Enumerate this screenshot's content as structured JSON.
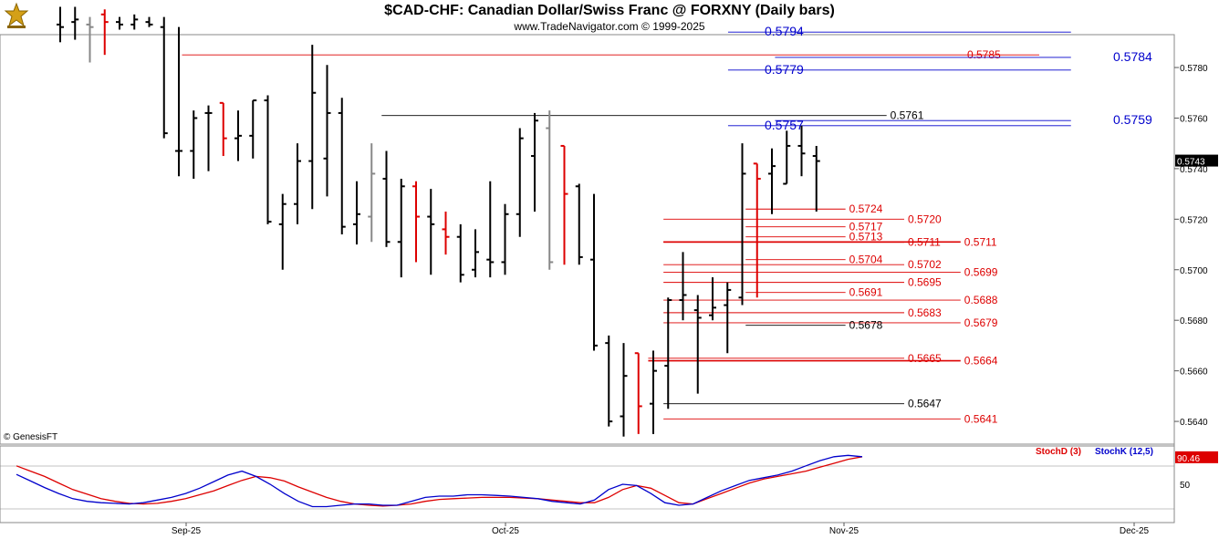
{
  "header": {
    "title": "$CAD-CHF:  Canadian Dollar/Swiss Franc @ FORXNY  (Daily bars)",
    "subtitle": "www.TradeNavigator.com © 1999-2025",
    "copyright": "© GenesisFT"
  },
  "colors": {
    "up_bar": "#000000",
    "down_bar": "#dd0000",
    "neutral_bar": "#888888",
    "level_blue": "#0000cc",
    "level_red": "#dd0000",
    "level_black": "#000000",
    "stoch_d": "#dd0000",
    "stoch_k": "#0000cc"
  },
  "chart_data": [
    {
      "type": "ohlc",
      "y_axis": {
        "ylim": [
          0.5631,
          0.5793
        ],
        "ticks": [
          "0.5640",
          "0.5660",
          "0.5680",
          "0.5700",
          "0.5720",
          "0.5740",
          "0.5760",
          "0.5780"
        ],
        "side": "right"
      },
      "x_axis": {
        "labels": [
          "Sep-25",
          "Oct-25",
          "Nov-25",
          "Dec-25"
        ],
        "label_positions_index": [
          0,
          22,
          32,
          43
        ]
      },
      "last_price": "0.5743",
      "bars": [
        {
          "o": 0.5797,
          "h": 0.5804,
          "l": 0.579,
          "c": 0.5796,
          "col": "black"
        },
        {
          "o": 0.5798,
          "h": 0.5804,
          "l": 0.5791,
          "c": 0.5799,
          "col": "black"
        },
        {
          "o": 0.5797,
          "h": 0.58,
          "l": 0.5782,
          "c": 0.5796,
          "col": "grey"
        },
        {
          "o": 0.5801,
          "h": 0.5803,
          "l": 0.5785,
          "c": 0.5798,
          "col": "red"
        },
        {
          "o": 0.5798,
          "h": 0.58,
          "l": 0.5795,
          "c": 0.5797,
          "col": "black"
        },
        {
          "o": 0.5797,
          "h": 0.5801,
          "l": 0.5795,
          "c": 0.5799,
          "col": "black"
        },
        {
          "o": 0.5798,
          "h": 0.58,
          "l": 0.5796,
          "c": 0.5797,
          "col": "black"
        },
        {
          "o": 0.5796,
          "h": 0.58,
          "l": 0.5752,
          "c": 0.5754,
          "col": "black"
        },
        {
          "o": 0.5747,
          "h": 0.5796,
          "l": 0.5737,
          "c": 0.5747,
          "col": "black"
        },
        {
          "o": 0.5747,
          "h": 0.5763,
          "l": 0.5736,
          "c": 0.576,
          "col": "black"
        },
        {
          "o": 0.5762,
          "h": 0.5765,
          "l": 0.5739,
          "c": 0.5762,
          "col": "black"
        },
        {
          "o": 0.5766,
          "h": 0.5766,
          "l": 0.5745,
          "c": 0.5752,
          "col": "red"
        },
        {
          "o": 0.5752,
          "h": 0.5763,
          "l": 0.5743,
          "c": 0.5753,
          "col": "black"
        },
        {
          "o": 0.5753,
          "h": 0.5767,
          "l": 0.5744,
          "c": 0.5767,
          "col": "black"
        },
        {
          "o": 0.5767,
          "h": 0.5769,
          "l": 0.5718,
          "c": 0.5719,
          "col": "black"
        },
        {
          "o": 0.5718,
          "h": 0.573,
          "l": 0.57,
          "c": 0.5726,
          "col": "black"
        },
        {
          "o": 0.5726,
          "h": 0.575,
          "l": 0.5718,
          "c": 0.5743,
          "col": "black"
        },
        {
          "o": 0.5743,
          "h": 0.5789,
          "l": 0.5724,
          "c": 0.577,
          "col": "black"
        },
        {
          "o": 0.5744,
          "h": 0.5781,
          "l": 0.5729,
          "c": 0.5762,
          "col": "black"
        },
        {
          "o": 0.5762,
          "h": 0.5768,
          "l": 0.5714,
          "c": 0.5717,
          "col": "black"
        },
        {
          "o": 0.5718,
          "h": 0.5735,
          "l": 0.571,
          "c": 0.5722,
          "col": "black"
        },
        {
          "o": 0.5721,
          "h": 0.575,
          "l": 0.5711,
          "c": 0.5738,
          "col": "grey"
        },
        {
          "o": 0.5736,
          "h": 0.5747,
          "l": 0.5709,
          "c": 0.5711,
          "col": "black"
        },
        {
          "o": 0.5711,
          "h": 0.5736,
          "l": 0.5697,
          "c": 0.5733,
          "col": "black"
        },
        {
          "o": 0.5733,
          "h": 0.5735,
          "l": 0.5703,
          "c": 0.5721,
          "col": "red"
        },
        {
          "o": 0.5721,
          "h": 0.5732,
          "l": 0.5698,
          "c": 0.5718,
          "col": "black"
        },
        {
          "o": 0.5716,
          "h": 0.5723,
          "l": 0.5706,
          "c": 0.5713,
          "col": "red"
        },
        {
          "o": 0.5713,
          "h": 0.5718,
          "l": 0.5695,
          "c": 0.5698,
          "col": "black"
        },
        {
          "o": 0.57,
          "h": 0.5716,
          "l": 0.5697,
          "c": 0.5707,
          "col": "black"
        },
        {
          "o": 0.5704,
          "h": 0.5735,
          "l": 0.5697,
          "c": 0.5703,
          "col": "black"
        },
        {
          "o": 0.5703,
          "h": 0.5726,
          "l": 0.5698,
          "c": 0.5722,
          "col": "black"
        },
        {
          "o": 0.5722,
          "h": 0.5756,
          "l": 0.5713,
          "c": 0.5752,
          "col": "black"
        },
        {
          "o": 0.5745,
          "h": 0.5762,
          "l": 0.5723,
          "c": 0.5759,
          "col": "black"
        },
        {
          "o": 0.5756,
          "h": 0.5763,
          "l": 0.57,
          "c": 0.5703,
          "col": "grey"
        },
        {
          "o": 0.5749,
          "h": 0.5749,
          "l": 0.5702,
          "c": 0.573,
          "col": "red"
        },
        {
          "o": 0.5733,
          "h": 0.5734,
          "l": 0.5702,
          "c": 0.5705,
          "col": "black"
        },
        {
          "o": 0.5704,
          "h": 0.573,
          "l": 0.5668,
          "c": 0.567,
          "col": "black"
        },
        {
          "o": 0.5671,
          "h": 0.5674,
          "l": 0.5638,
          "c": 0.564,
          "col": "black"
        },
        {
          "o": 0.5642,
          "h": 0.5671,
          "l": 0.5634,
          "c": 0.5658,
          "col": "black"
        },
        {
          "o": 0.5667,
          "h": 0.5667,
          "l": 0.5635,
          "c": 0.5646,
          "col": "red"
        },
        {
          "o": 0.5647,
          "h": 0.5668,
          "l": 0.5635,
          "c": 0.566,
          "col": "black"
        },
        {
          "o": 0.5662,
          "h": 0.5689,
          "l": 0.5645,
          "c": 0.5688,
          "col": "black"
        },
        {
          "o": 0.5688,
          "h": 0.5707,
          "l": 0.568,
          "c": 0.569,
          "col": "black"
        },
        {
          "o": 0.5684,
          "h": 0.569,
          "l": 0.5651,
          "c": 0.5681,
          "col": "black"
        },
        {
          "o": 0.5682,
          "h": 0.5697,
          "l": 0.568,
          "c": 0.5685,
          "col": "black"
        },
        {
          "o": 0.5686,
          "h": 0.5695,
          "l": 0.5667,
          "c": 0.5692,
          "col": "black"
        },
        {
          "o": 0.5689,
          "h": 0.575,
          "l": 0.5686,
          "c": 0.5738,
          "col": "black"
        },
        {
          "o": 0.5742,
          "h": 0.5742,
          "l": 0.5689,
          "c": 0.5736,
          "col": "red"
        },
        {
          "o": 0.5738,
          "h": 0.5748,
          "l": 0.5722,
          "c": 0.5741,
          "col": "black"
        },
        {
          "o": 0.5734,
          "h": 0.5755,
          "l": 0.5734,
          "c": 0.5749,
          "col": "black"
        },
        {
          "o": 0.5749,
          "h": 0.5757,
          "l": 0.5737,
          "c": 0.5746,
          "col": "black"
        },
        {
          "o": 0.5745,
          "h": 0.5749,
          "l": 0.5723,
          "c": 0.5743,
          "col": "black"
        }
      ],
      "levels": [
        {
          "value": 0.5794,
          "label": "0.5794",
          "color": "blue",
          "x0": 0.62,
          "x1": 0.912,
          "label_side": "left"
        },
        {
          "value": 0.5785,
          "label": "0.5785",
          "color": "red",
          "x0": 0.155,
          "x1": 0.885,
          "label_side": "mid"
        },
        {
          "value": 0.5784,
          "label": "0.5784",
          "color": "blue",
          "x0": 0.66,
          "x1": 0.912,
          "label_side": "right"
        },
        {
          "value": 0.5779,
          "label": "0.5779",
          "color": "blue",
          "x0": 0.62,
          "x1": 0.912,
          "label_side": "left"
        },
        {
          "value": 0.5761,
          "label": "0.5761",
          "color": "black",
          "x0": 0.325,
          "x1": 0.755,
          "label_side": "right"
        },
        {
          "value": 0.5759,
          "label": "0.5759",
          "color": "blue",
          "x0": 0.66,
          "x1": 0.912,
          "label_side": "right"
        },
        {
          "value": 0.5757,
          "label": "0.5757",
          "color": "blue",
          "x0": 0.62,
          "x1": 0.912,
          "label_side": "left"
        },
        {
          "value": 0.5724,
          "label": "0.5724",
          "color": "red",
          "x0": 0.635,
          "x1": 0.72,
          "label_side": "right"
        },
        {
          "value": 0.572,
          "label": "0.5720",
          "color": "red",
          "x0": 0.565,
          "x1": 0.77,
          "label_side": "right"
        },
        {
          "value": 0.5717,
          "label": "0.5717",
          "color": "red",
          "x0": 0.635,
          "x1": 0.72,
          "label_side": "right"
        },
        {
          "value": 0.5713,
          "label": "0.5713",
          "color": "red",
          "x0": 0.635,
          "x1": 0.72,
          "label_side": "right"
        },
        {
          "value": 0.5711,
          "label": "0.5711",
          "color": "red",
          "x0": 0.565,
          "x1": 0.818,
          "label_side": "right"
        },
        {
          "value": 0.5711,
          "label": "0.5711",
          "color": "red",
          "x0": 0.565,
          "x1": 0.77,
          "label_side": "right"
        },
        {
          "value": 0.5704,
          "label": "0.5704",
          "color": "red",
          "x0": 0.635,
          "x1": 0.72,
          "label_side": "right"
        },
        {
          "value": 0.5702,
          "label": "0.5702",
          "color": "red",
          "x0": 0.565,
          "x1": 0.77,
          "label_side": "right"
        },
        {
          "value": 0.5699,
          "label": "0.5699",
          "color": "red",
          "x0": 0.565,
          "x1": 0.818,
          "label_side": "right"
        },
        {
          "value": 0.5695,
          "label": "0.5695",
          "color": "red",
          "x0": 0.565,
          "x1": 0.77,
          "label_side": "right"
        },
        {
          "value": 0.5691,
          "label": "0.5691",
          "color": "red",
          "x0": 0.635,
          "x1": 0.72,
          "label_side": "right"
        },
        {
          "value": 0.5688,
          "label": "0.5688",
          "color": "red",
          "x0": 0.565,
          "x1": 0.818,
          "label_side": "right"
        },
        {
          "value": 0.5683,
          "label": "0.5683",
          "color": "red",
          "x0": 0.565,
          "x1": 0.77,
          "label_side": "right"
        },
        {
          "value": 0.5679,
          "label": "0.5679",
          "color": "red",
          "x0": 0.565,
          "x1": 0.818,
          "label_side": "right"
        },
        {
          "value": 0.5678,
          "label": "0.5678",
          "color": "black",
          "x0": 0.635,
          "x1": 0.72,
          "label_side": "right"
        },
        {
          "value": 0.5665,
          "label": "0.5665",
          "color": "red",
          "x0": 0.552,
          "x1": 0.77,
          "label_side": "right"
        },
        {
          "value": 0.5664,
          "label": "0.5664",
          "color": "red",
          "x0": 0.552,
          "x1": 0.818,
          "label_side": "right"
        },
        {
          "value": 0.5647,
          "label": "0.5647",
          "color": "black",
          "x0": 0.565,
          "x1": 0.77,
          "label_side": "right"
        },
        {
          "value": 0.5641,
          "label": "0.5641",
          "color": "red",
          "x0": 0.565,
          "x1": 0.818,
          "label_side": "right"
        }
      ]
    },
    {
      "type": "line",
      "title": "",
      "legend": [
        {
          "name": "StochD (3)",
          "color": "red"
        },
        {
          "name": "StochK (12,5)",
          "color": "blue"
        }
      ],
      "ylim": [
        0,
        100
      ],
      "y_ticks": [
        "50"
      ],
      "last_value": "90.46",
      "series": [
        {
          "name": "StochD (3)",
          "values": [
            78,
            70,
            62,
            52,
            42,
            35,
            28,
            24,
            21,
            20,
            21,
            24,
            28,
            34,
            40,
            48,
            56,
            62,
            60,
            55,
            46,
            38,
            30,
            24,
            20,
            18,
            17,
            18,
            20,
            24,
            27,
            28,
            29,
            30,
            30,
            30,
            29,
            28,
            26,
            24,
            22,
            22,
            30,
            42,
            48,
            44,
            33,
            22,
            20,
            28,
            36,
            44,
            52,
            58,
            62,
            66,
            70,
            76,
            82,
            88,
            92
          ]
        },
        {
          "name": "StochK (12,5)",
          "values": [
            65,
            55,
            45,
            36,
            28,
            24,
            22,
            21,
            20,
            22,
            26,
            30,
            36,
            44,
            54,
            64,
            70,
            62,
            50,
            36,
            24,
            16,
            16,
            18,
            20,
            20,
            18,
            18,
            24,
            30,
            32,
            32,
            34,
            34,
            33,
            32,
            30,
            28,
            24,
            22,
            20,
            26,
            42,
            50,
            48,
            36,
            22,
            18,
            20,
            30,
            40,
            48,
            56,
            60,
            64,
            70,
            78,
            86,
            92,
            94,
            92
          ]
        }
      ]
    }
  ]
}
